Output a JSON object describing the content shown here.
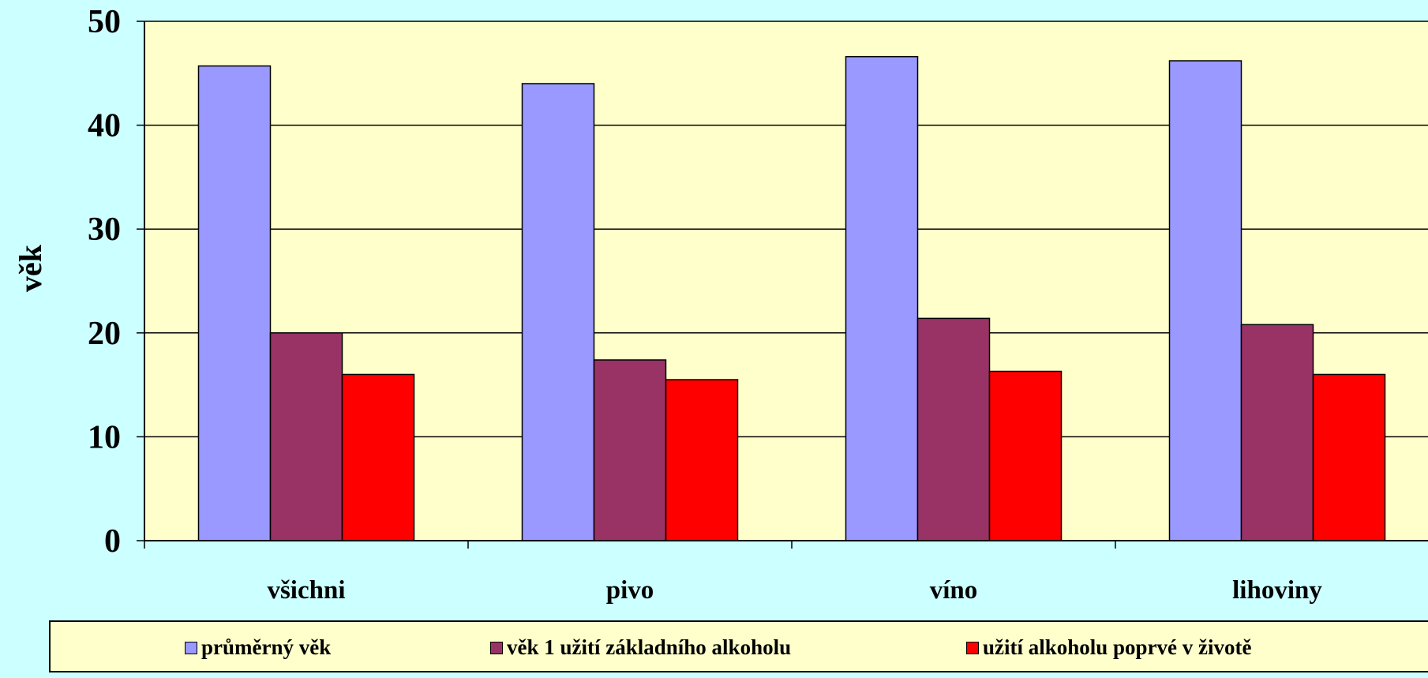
{
  "chart_data": {
    "type": "bar",
    "ylabel": "věk",
    "ylim": [
      0,
      50
    ],
    "yticks": [
      "0",
      "10",
      "20",
      "30",
      "40",
      "50"
    ],
    "categories": [
      "všichni",
      "pivo",
      "víno",
      "lihoviny"
    ],
    "series": [
      {
        "name": "průměrný věk",
        "values": [
          45.7,
          44.0,
          46.6,
          46.2
        ],
        "color": "#9999ff"
      },
      {
        "name": "věk 1 užití základního alkoholu",
        "values": [
          20.0,
          17.4,
          21.4,
          20.8
        ],
        "color": "#993366"
      },
      {
        "name": "užití alkoholu poprvé v životě",
        "values": [
          16.0,
          15.5,
          16.3,
          16.0
        ],
        "color": "#ff0000"
      }
    ],
    "grid": true,
    "legend_position": "bottom",
    "plot_background": "#ffffcc",
    "page_background": "#ccffff"
  }
}
